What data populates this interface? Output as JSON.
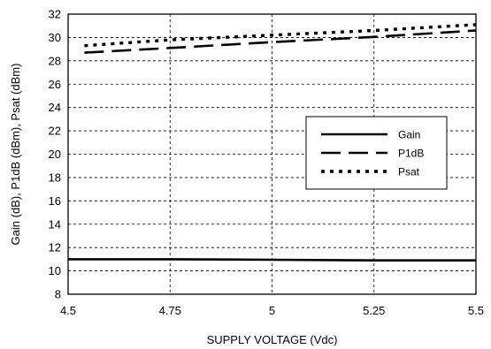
{
  "chart_data": {
    "type": "line",
    "xlabel": "SUPPLY VOLTAGE (Vdc)",
    "ylabel": "Gain (dB), P1dB (dBm), Psat (dBm)",
    "xlim": [
      4.5,
      5.5
    ],
    "ylim": [
      8,
      32
    ],
    "x_ticks": [
      4.5,
      4.75,
      5,
      5.25,
      5.5
    ],
    "x_tick_labels": [
      "4.5",
      "4.75",
      "5",
      "5.25",
      "5.5"
    ],
    "y_ticks": [
      8,
      10,
      12,
      14,
      16,
      18,
      20,
      22,
      24,
      26,
      28,
      30,
      32
    ],
    "y_tick_labels": [
      "8",
      "10",
      "12",
      "14",
      "16",
      "18",
      "20",
      "22",
      "24",
      "26",
      "28",
      "30",
      "32"
    ],
    "grid": true,
    "legend_placement": "center-right",
    "series": [
      {
        "name": "Gain",
        "style": "solid",
        "color": "#000000",
        "x": [
          4.5,
          4.75,
          5,
          5.25,
          5.5
        ],
        "y": [
          11.0,
          11.0,
          10.95,
          10.9,
          10.9
        ]
      },
      {
        "name": "P1dB",
        "style": "long-dash",
        "color": "#000000",
        "x": [
          4.54,
          4.75,
          5,
          5.25,
          5.5
        ],
        "y": [
          28.7,
          29.1,
          29.6,
          30.05,
          30.6
        ]
      },
      {
        "name": "Psat",
        "style": "dotted",
        "color": "#000000",
        "x": [
          4.54,
          4.75,
          5,
          5.25,
          5.5
        ],
        "y": [
          29.3,
          29.8,
          30.2,
          30.6,
          31.1
        ]
      }
    ]
  }
}
